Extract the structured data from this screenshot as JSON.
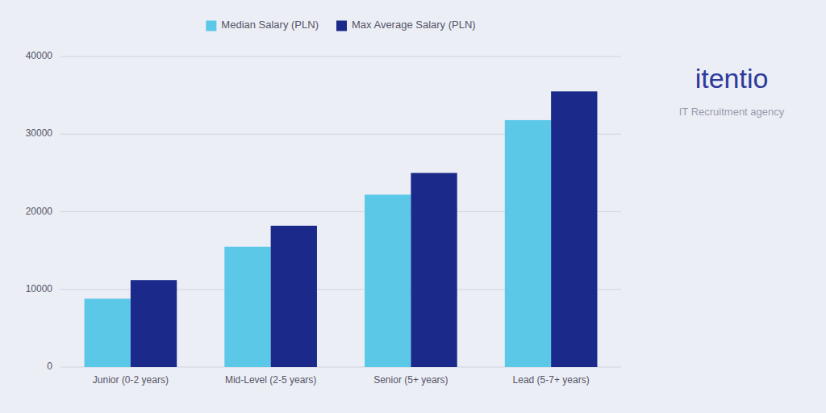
{
  "chart_data": {
    "type": "bar",
    "title": "itentio",
    "subtitle": "IT Recruitment agency",
    "categories": [
      "Junior (0-2 years)",
      "Mid-Level (2-5 years)",
      "Senior (5+ years)",
      "Lead (5-7+ years)"
    ],
    "series": [
      {
        "name": "Median Salary (PLN)",
        "color": "#5BC8E8",
        "values": [
          8800,
          15500,
          22200,
          31800
        ]
      },
      {
        "name": "Max Average Salary (PLN)",
        "color": "#1B2A8A",
        "values": [
          11200,
          18200,
          25000,
          35500
        ]
      }
    ],
    "ylim": [
      0,
      40000
    ],
    "yticks": [
      0,
      10000,
      20000,
      30000,
      40000
    ],
    "grid": true,
    "legend": "top"
  }
}
